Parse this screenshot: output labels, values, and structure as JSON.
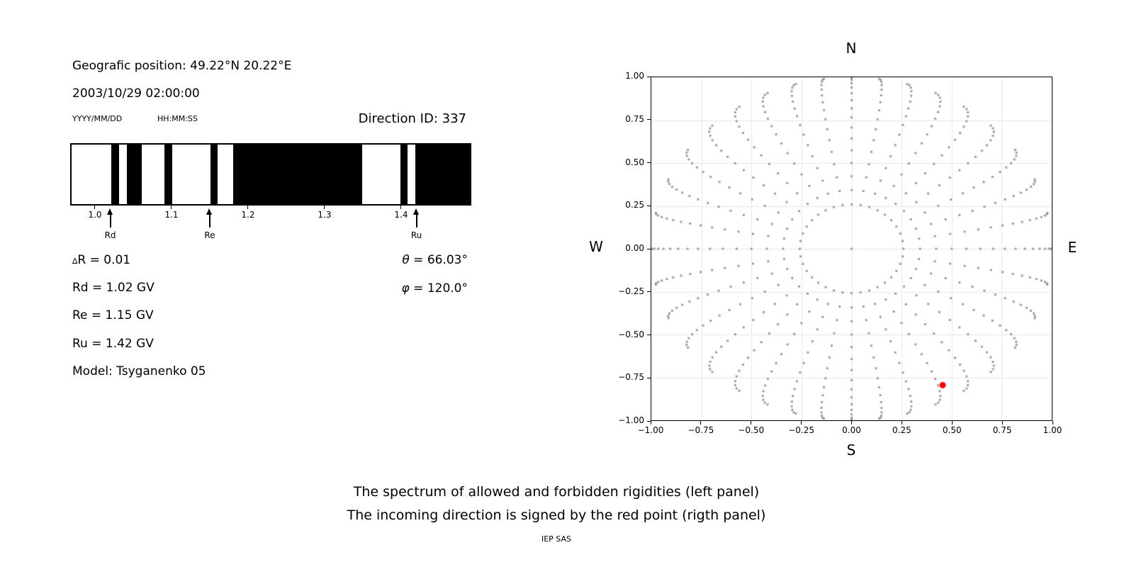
{
  "info": {
    "position": "Geografic position: 49.22°N 20.22°E",
    "datetime": "2003/10/29 02:00:00",
    "date_format_hint": "YYYY/MM/DD",
    "time_format_hint": "HH:MM:SS",
    "direction_id": "Direction ID: 337"
  },
  "parameters": {
    "delta_symbol": "∆",
    "delta_rest": "R = 0.01",
    "rd": "Rd = 1.02 GV",
    "re": "Re = 1.15 GV",
    "ru": "Ru = 1.42 GV",
    "model": "Model: Tsyganenko 05",
    "theta_symbol": "θ",
    "theta_rest": " = 66.03°",
    "phi_symbol": "φ",
    "phi_rest": " = 120.0°"
  },
  "captions": {
    "line1": "The spectrum of allowed and forbidden rigidities (left panel)",
    "line2": "The incoming direction is signed by the red point (rigth panel)",
    "credit": "IEP SAS"
  },
  "chart_data": [
    {
      "id": "rigidity-spectrum",
      "type": "bar",
      "style": "binary interval barcode: black = forbidden rigidity, white = allowed rigidity",
      "unit": "GV",
      "xlim": [
        0.9676,
        1.4917
      ],
      "xticks": [
        1.0,
        1.1,
        1.2,
        1.3,
        1.4
      ],
      "xtick_labels": [
        "1.0",
        "1.1",
        "1.2",
        "1.3",
        "1.4"
      ],
      "forbidden_intervals": [
        [
          1.02,
          1.03
        ],
        [
          1.04,
          1.06
        ],
        [
          1.09,
          1.1
        ],
        [
          1.15,
          1.16
        ],
        [
          1.18,
          1.35
        ],
        [
          1.4,
          1.41
        ],
        [
          1.42,
          1.4917
        ]
      ],
      "markers": [
        {
          "label": "Rd",
          "value": 1.02
        },
        {
          "label": "Re",
          "value": 1.15
        },
        {
          "label": "Ru",
          "value": 1.42
        }
      ],
      "colors": {
        "forbidden": "#000000",
        "allowed": "#ffffff",
        "frame": "#000000"
      }
    },
    {
      "id": "incoming-direction-map",
      "type": "scatter",
      "compass": {
        "top": "N",
        "bottom": "S",
        "left": "W",
        "right": "E"
      },
      "xlim": [
        -1,
        1
      ],
      "ylim": [
        -1,
        1
      ],
      "ticks": [
        -1,
        -0.75,
        -0.5,
        -0.25,
        0,
        0.25,
        0.5,
        0.75,
        1
      ],
      "xtick_labels": [
        "−1.00",
        "−0.75",
        "−0.50",
        "−0.25",
        "0.00",
        "0.25",
        "0.50",
        "0.75",
        "1.00"
      ],
      "ytick_labels_top_to_bottom": [
        "1.00",
        "0.75",
        "0.50",
        "0.25",
        "0.00",
        "−0.25",
        "−0.50",
        "−0.75",
        "−1.00"
      ],
      "grid": true,
      "grid_color": "#e7e7e7",
      "spokes": {
        "azimuth_start_deg": 0,
        "azimuth_step_deg": 10,
        "azimuth_count": 36,
        "zenith_start_deg": 15,
        "zenith_step_deg": 5,
        "zenith_count": 16,
        "radius_rule": "r = sin(zenith)",
        "hook_amplitude_deg": 6
      },
      "center_dot": [
        0,
        0
      ],
      "dot_color": "#8c8c8c",
      "dot_size_px": 3,
      "red_point": {
        "x": 0.455,
        "y": -0.795,
        "color": "#ff0000",
        "radius_px": 4.5
      }
    }
  ]
}
